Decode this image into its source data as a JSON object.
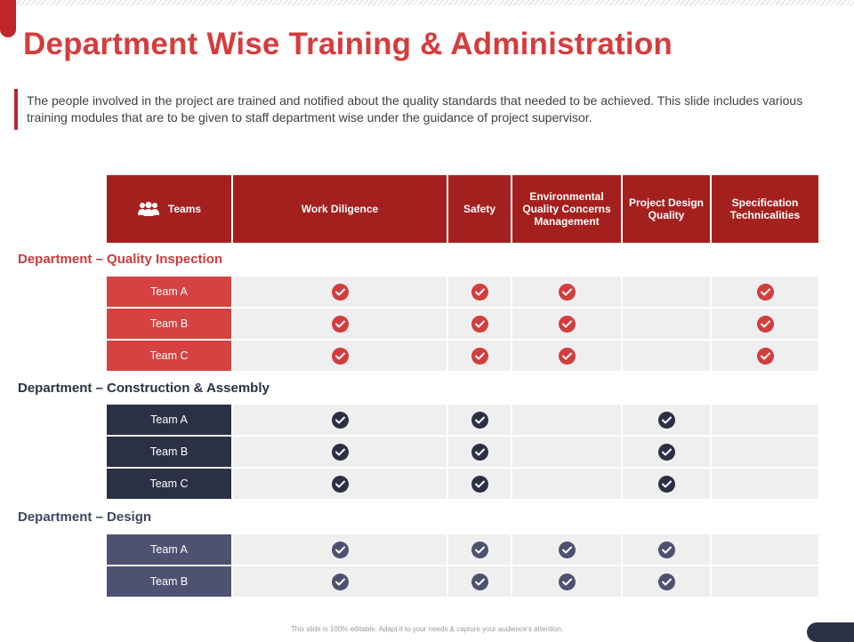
{
  "slide": {
    "title": "Department Wise Training & Administration",
    "intro": "The people involved in the project are trained and notified about the quality standards that needed to be achieved. This slide includes various training modules that are to be given to staff department wise under the guidance of project supervisor.",
    "footer": "This slide is 100% editable. Adapt it to your needs & capture your audience's attention."
  },
  "table": {
    "headers": [
      "Teams",
      "Work Diligence",
      "Safety",
      "Environmental Quality Concerns Management",
      "Project Design Quality",
      "Specification Technicalities"
    ],
    "header_icon": "team-group-icon",
    "check_icon": "check-circle-icon",
    "departments": [
      {
        "name": "Department – Quality Inspection",
        "color": "#d64141",
        "teams": [
          {
            "label": "Team A",
            "checks": [
              true,
              true,
              true,
              false,
              true
            ]
          },
          {
            "label": "Team B",
            "checks": [
              true,
              true,
              true,
              false,
              true
            ]
          },
          {
            "label": "Team C",
            "checks": [
              true,
              true,
              true,
              false,
              true
            ]
          }
        ]
      },
      {
        "name": "Department – Construction & Assembly",
        "color": "#2c3044",
        "teams": [
          {
            "label": "Team A",
            "checks": [
              true,
              true,
              false,
              true,
              false
            ]
          },
          {
            "label": "Team B",
            "checks": [
              true,
              true,
              false,
              true,
              false
            ]
          },
          {
            "label": "Team C",
            "checks": [
              true,
              true,
              false,
              true,
              false
            ]
          }
        ]
      },
      {
        "name": "Department – Design",
        "color": "#4e5270",
        "teams": [
          {
            "label": "Team A",
            "checks": [
              true,
              true,
              true,
              true,
              false
            ]
          },
          {
            "label": "Team B",
            "checks": [
              true,
              true,
              true,
              true,
              false
            ]
          }
        ]
      }
    ]
  },
  "colors": {
    "title": "#d63c3c",
    "header_bg": "#a4201f",
    "cell_bg": "#efefef"
  }
}
